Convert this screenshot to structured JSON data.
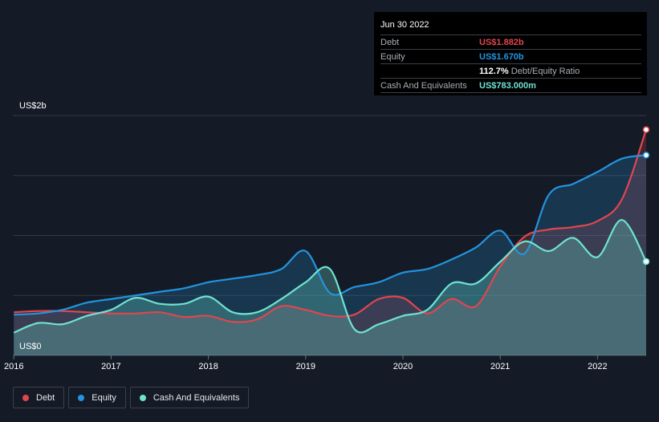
{
  "tooltip": {
    "date": "Jun 30 2022",
    "rows": [
      {
        "label": "Debt",
        "value": "US$1.882b",
        "note": ""
      },
      {
        "label": "Equity",
        "value": "US$1.670b",
        "note": ""
      },
      {
        "label": "",
        "value": "112.7%",
        "note": "Debt/Equity Ratio"
      },
      {
        "label": "Cash And Equivalents",
        "value": "US$783.000m",
        "note": ""
      }
    ]
  },
  "colors": {
    "debt": "#e0464f",
    "equity": "#2394df",
    "cash": "#6fe3d1",
    "background": "#151b26",
    "grid": "#323845"
  },
  "legend": [
    {
      "name": "Debt",
      "color": "#e0464f"
    },
    {
      "name": "Equity",
      "color": "#2394df"
    },
    {
      "name": "Cash And Equivalents",
      "color": "#6fe3d1"
    }
  ],
  "chart_data": {
    "type": "area",
    "title": "",
    "xlabel": "",
    "ylabel": "",
    "y_top_label": "US$2b",
    "y_bottom_label": "US$0",
    "ylim": [
      0,
      2.0
    ],
    "xlim": [
      2015.99,
      2022.5
    ],
    "x_ticks": [
      2016,
      2017,
      2018,
      2019,
      2020,
      2021,
      2022
    ],
    "x_tick_labels": [
      "2016",
      "2017",
      "2018",
      "2019",
      "2020",
      "2021",
      "2022"
    ],
    "gridlines": [
      0.5,
      1.0,
      1.5,
      2.0
    ],
    "series": [
      {
        "name": "Debt",
        "color": "#e0464f",
        "x": [
          2016.0,
          2016.25,
          2016.5,
          2016.75,
          2017.0,
          2017.25,
          2017.5,
          2017.75,
          2018.0,
          2018.25,
          2018.5,
          2018.75,
          2019.0,
          2019.25,
          2019.5,
          2019.75,
          2020.0,
          2020.25,
          2020.5,
          2020.75,
          2021.0,
          2021.25,
          2021.5,
          2021.75,
          2022.0,
          2022.25,
          2022.5
        ],
        "values": [
          0.36,
          0.37,
          0.37,
          0.36,
          0.35,
          0.35,
          0.36,
          0.32,
          0.33,
          0.28,
          0.3,
          0.41,
          0.38,
          0.33,
          0.34,
          0.47,
          0.48,
          0.35,
          0.47,
          0.41,
          0.74,
          0.99,
          1.05,
          1.07,
          1.12,
          1.3,
          1.882
        ]
      },
      {
        "name": "Equity",
        "color": "#2394df",
        "x": [
          2016.0,
          2016.25,
          2016.5,
          2016.75,
          2017.0,
          2017.25,
          2017.5,
          2017.75,
          2018.0,
          2018.25,
          2018.5,
          2018.75,
          2019.0,
          2019.25,
          2019.5,
          2019.75,
          2020.0,
          2020.25,
          2020.5,
          2020.75,
          2021.0,
          2021.25,
          2021.5,
          2021.75,
          2022.0,
          2022.25,
          2022.5
        ],
        "values": [
          0.34,
          0.35,
          0.38,
          0.44,
          0.47,
          0.5,
          0.53,
          0.56,
          0.61,
          0.64,
          0.67,
          0.72,
          0.87,
          0.52,
          0.57,
          0.61,
          0.69,
          0.72,
          0.8,
          0.9,
          1.04,
          0.85,
          1.34,
          1.43,
          1.53,
          1.64,
          1.67
        ]
      },
      {
        "name": "Cash And Equivalents",
        "color": "#6fe3d1",
        "x": [
          2016.0,
          2016.25,
          2016.5,
          2016.75,
          2017.0,
          2017.25,
          2017.5,
          2017.75,
          2018.0,
          2018.25,
          2018.5,
          2018.75,
          2019.0,
          2019.25,
          2019.5,
          2019.75,
          2020.0,
          2020.25,
          2020.5,
          2020.75,
          2021.0,
          2021.25,
          2021.5,
          2021.75,
          2022.0,
          2022.25,
          2022.5
        ],
        "values": [
          0.19,
          0.27,
          0.26,
          0.33,
          0.38,
          0.48,
          0.43,
          0.43,
          0.49,
          0.36,
          0.36,
          0.47,
          0.61,
          0.72,
          0.22,
          0.26,
          0.33,
          0.38,
          0.6,
          0.6,
          0.78,
          0.95,
          0.87,
          0.98,
          0.82,
          1.13,
          0.783
        ]
      }
    ]
  }
}
